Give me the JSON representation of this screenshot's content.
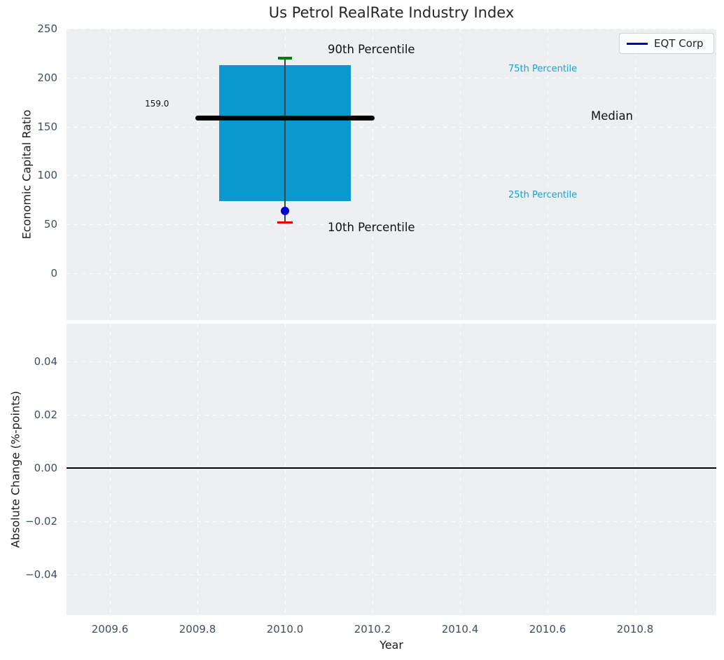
{
  "title": "Us Petrol RealRate Industry Index",
  "legend": {
    "label": "EQT Corp"
  },
  "annotations": {
    "p90": "90th Percentile",
    "p75": "75th Percentile",
    "median": "Median",
    "p25": "25th Percentile",
    "p10": "10th Percentile",
    "median_value": "159.0"
  },
  "colors": {
    "axes_bg": "#ecf0f1",
    "grid": "#ffffff",
    "tick_text": "#3e5066",
    "box_fill": "#0999cc",
    "percentile_text": "#1b9fd4",
    "cap_90": "#008000",
    "cap_10": "#e8000b",
    "company_marker": "#0000cc",
    "median_line": "#000000",
    "zero_line": "#000000",
    "legend_line": "#0000cc"
  },
  "chart_data": [
    {
      "type": "boxplot",
      "title": "Us Petrol RealRate Industry Index",
      "ylabel": "Economic Capital Ratio",
      "xlabel": "",
      "x_center": 2010.0,
      "percentiles": {
        "p90": 220,
        "p75": 213,
        "median": 159.0,
        "p25": 74,
        "p10": 52
      },
      "median_label": "159.0",
      "company_point": {
        "name": "EQT Corp",
        "x": 2010.0,
        "value": 64
      },
      "yticks": [
        250,
        200,
        150,
        100,
        50,
        0
      ],
      "ytick_labels": [
        "250",
        "200",
        "150",
        "100",
        "50",
        "0"
      ],
      "ylim": [
        -48,
        250
      ],
      "xlim": [
        2009.5,
        2010.99
      ],
      "grid": "white-dashed",
      "legend_position": "upper-right",
      "legend_entries": [
        "EQT Corp"
      ]
    },
    {
      "type": "line",
      "title": "",
      "ylabel": "Absolute Change (%-points)",
      "xlabel": "Year",
      "zero_line_y": 0.0,
      "series": [],
      "yticks": [
        0.04,
        0.02,
        0.0,
        -0.02,
        -0.04
      ],
      "ytick_labels": [
        "0.04",
        "0.02",
        "0.00",
        "−0.02",
        "−0.04"
      ],
      "ylim": [
        -0.055,
        0.055
      ],
      "xticks": [
        2009.6,
        2009.8,
        2010.0,
        2010.2,
        2010.4,
        2010.6,
        2010.8
      ],
      "xtick_labels": [
        "2009.6",
        "2009.8",
        "2010.0",
        "2010.2",
        "2010.4",
        "2010.6",
        "2010.8"
      ],
      "grid": "white-dashed"
    }
  ]
}
